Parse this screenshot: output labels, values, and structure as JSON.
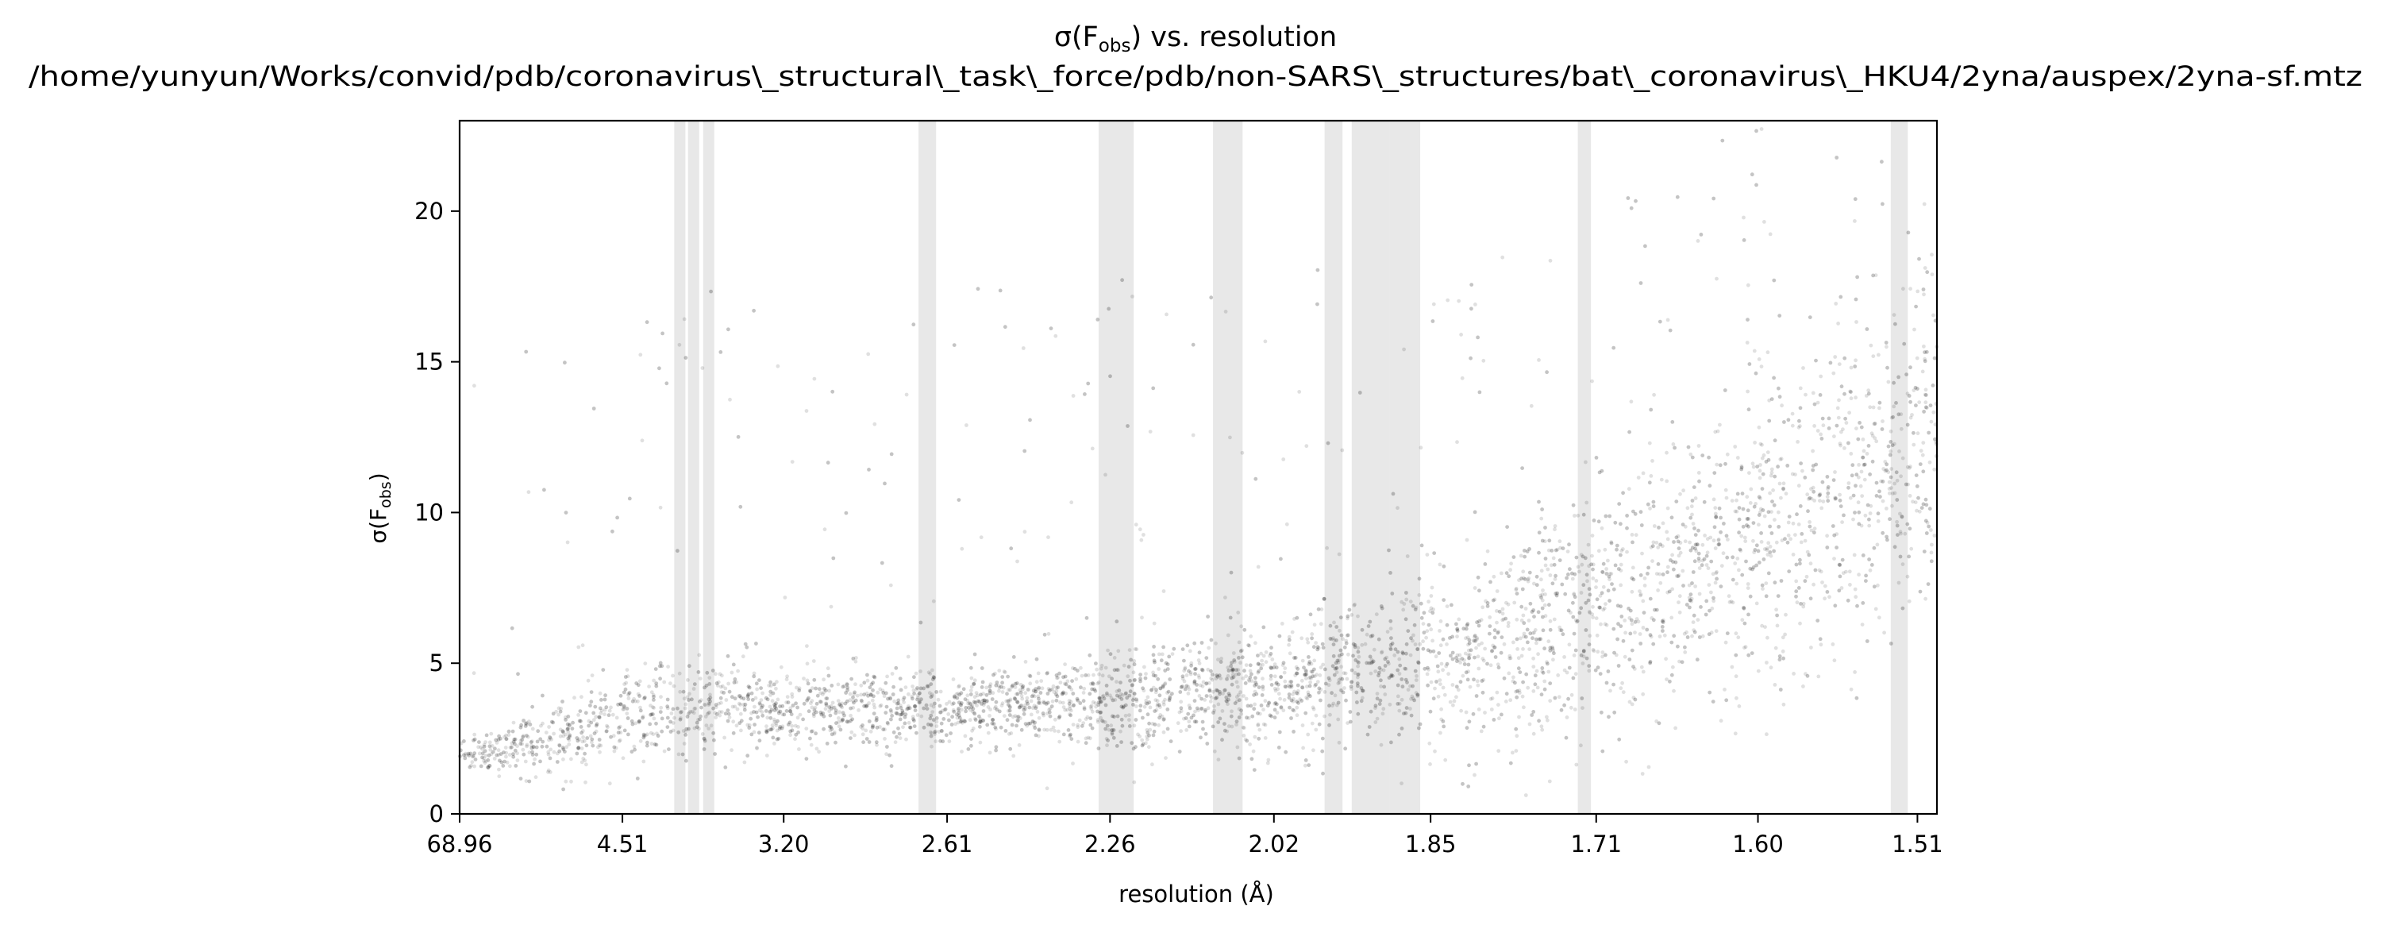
{
  "chart_data": {
    "type": "scatter",
    "title": "σ(F_obs) vs. resolution",
    "title_prefix": "σ(F",
    "title_sub": "obs",
    "title_suffix": ") vs. resolution",
    "subtitle": "/home/yunyun/Works/convid/pdb/coronavirus\\_structural\\_task\\_force/pdb/non-SARS\\_structures/bat\\_coronavirus\\_HKU4/2yna/auspex/2yna-sf.mtz",
    "xlabel": "resolution (Å)",
    "ylabel": "σ(F_obs)",
    "ylabel_prefix": "σ(F",
    "ylabel_sub": "obs",
    "ylabel_suffix": ")",
    "x_axis_scale": "1/d²",
    "x_ticks": [
      "68.96",
      "4.51",
      "3.20",
      "2.61",
      "2.26",
      "2.02",
      "1.85",
      "1.71",
      "1.60",
      "1.51"
    ],
    "y_ticks": [
      0,
      5,
      10,
      15,
      20
    ],
    "ylim": [
      0,
      23
    ],
    "xlim_resolution": [
      68.96,
      1.5
    ],
    "grid": false,
    "point_color": "#000000",
    "ice_ring_color": "#d9d9d9",
    "ice_ring_bands_resolution": [
      [
        3.93,
        3.87
      ],
      [
        3.81,
        3.72
      ],
      [
        3.69,
        3.62
      ],
      [
        2.69,
        2.64
      ],
      [
        2.28,
        2.22
      ],
      [
        2.1,
        2.06
      ],
      [
        1.96,
        1.94
      ],
      [
        1.93,
        1.89
      ],
      [
        1.89,
        1.86
      ],
      [
        1.724,
        1.714
      ],
      [
        1.524,
        1.515
      ]
    ],
    "density_profile": [
      {
        "resolution": 68.96,
        "sigma_median": 1.9,
        "sigma_spread": 0.5
      },
      {
        "resolution": 5.5,
        "sigma_median": 2.5,
        "sigma_spread": 1.2
      },
      {
        "resolution": 4.51,
        "sigma_median": 3.1,
        "sigma_spread": 1.5
      },
      {
        "resolution": 3.7,
        "sigma_median": 3.5,
        "sigma_spread": 1.4
      },
      {
        "resolution": 3.2,
        "sigma_median": 3.5,
        "sigma_spread": 1.2
      },
      {
        "resolution": 2.61,
        "sigma_median": 3.4,
        "sigma_spread": 1.2
      },
      {
        "resolution": 2.26,
        "sigma_median": 3.7,
        "sigma_spread": 1.4
      },
      {
        "resolution": 2.02,
        "sigma_median": 4.2,
        "sigma_spread": 1.8
      },
      {
        "resolution": 1.85,
        "sigma_median": 5.0,
        "sigma_spread": 2.6
      },
      {
        "resolution": 1.71,
        "sigma_median": 6.5,
        "sigma_spread": 3.8
      },
      {
        "resolution": 1.6,
        "sigma_median": 9.0,
        "sigma_spread": 4.5
      },
      {
        "resolution": 1.51,
        "sigma_median": 12.0,
        "sigma_spread": 5.0
      }
    ]
  }
}
